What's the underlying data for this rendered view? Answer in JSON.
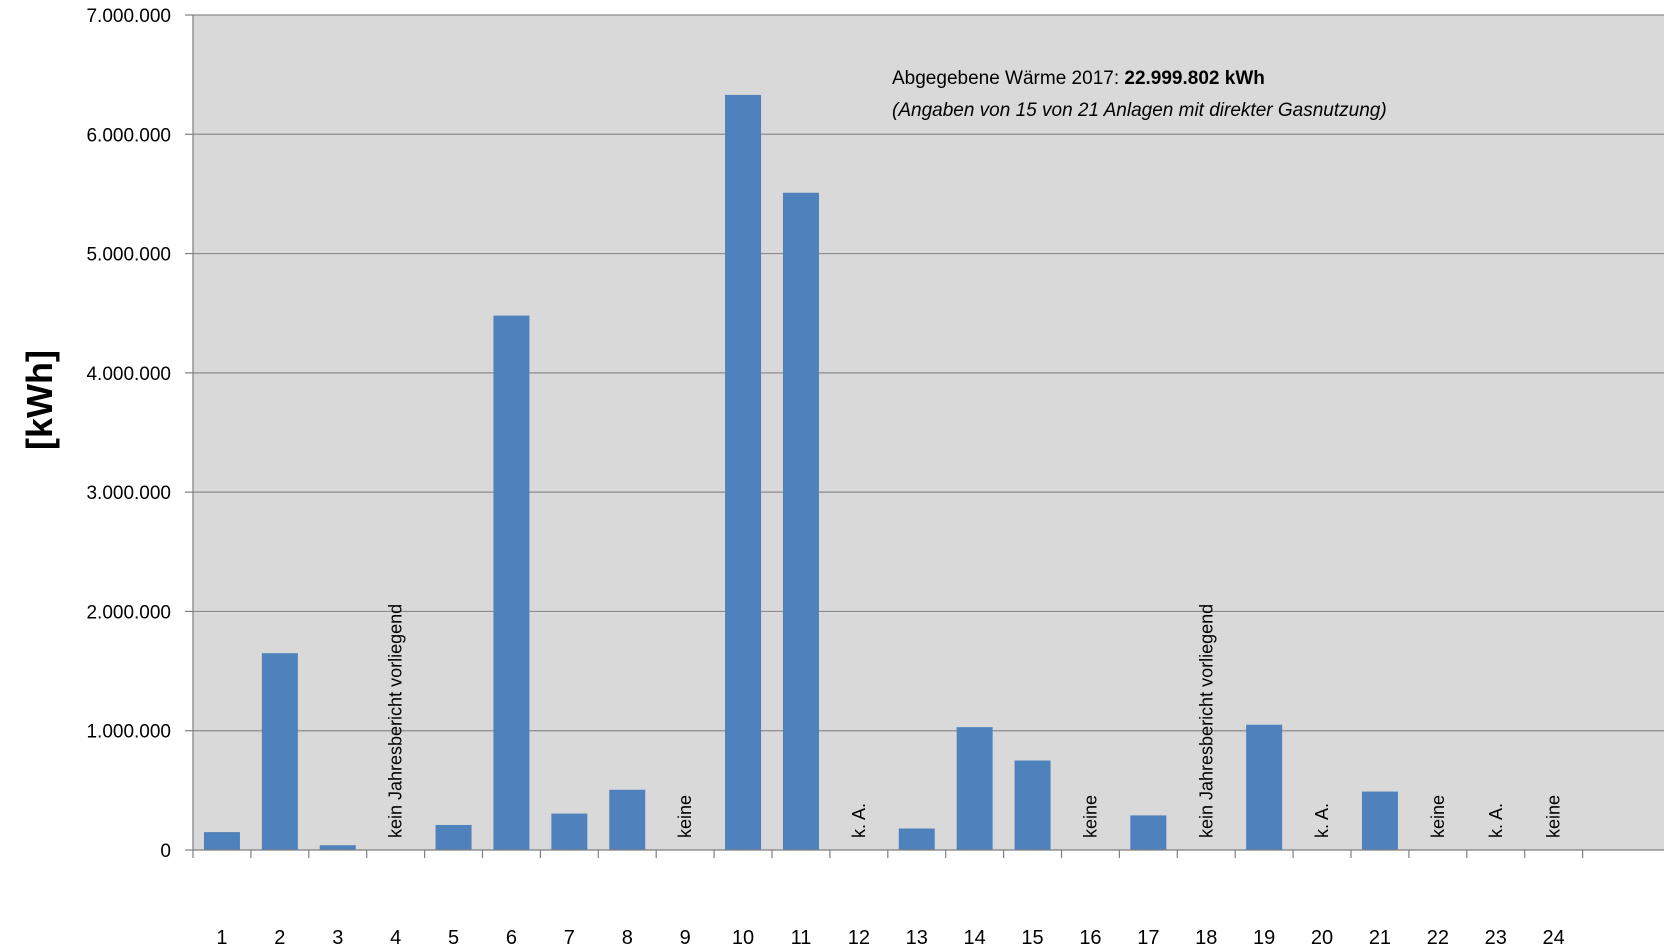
{
  "chart_data": {
    "type": "bar",
    "title": "",
    "xlabel": "",
    "ylabel": "[kWh]",
    "ylim": [
      0,
      7000000
    ],
    "grid": true,
    "legend": "none",
    "y_ticks": [
      "0",
      "1.000.000",
      "2.000.000",
      "3.000.000",
      "4.000.000",
      "5.000.000",
      "6.000.000",
      "7.000.000"
    ],
    "y_tick_values": [
      0,
      1000000,
      2000000,
      3000000,
      4000000,
      5000000,
      6000000,
      7000000
    ],
    "categories": [
      "1",
      "2",
      "3",
      "4",
      "5",
      "6",
      "7",
      "8",
      "9",
      "10",
      "11",
      "12",
      "13",
      "14",
      "15",
      "16",
      "17",
      "18",
      "19",
      "20",
      "21",
      "22",
      "23",
      "24"
    ],
    "values": [
      150000,
      1650000,
      40000,
      null,
      210000,
      4480000,
      305000,
      505000,
      null,
      6330000,
      5510000,
      null,
      180000,
      1030000,
      750000,
      null,
      290000,
      null,
      1050000,
      null,
      490000,
      null,
      null,
      null
    ],
    "bar_notes": [
      "",
      "",
      "",
      "kein Jahresbericht vorliegend",
      "",
      "",
      "",
      "",
      "keine",
      "",
      "",
      "k. A.",
      "",
      "",
      "",
      "keine",
      "",
      "kein Jahresbericht vorliegend",
      "",
      "k. A.",
      "",
      "keine",
      "k. A.",
      "keine"
    ],
    "annotation": {
      "line1_prefix": "Abgegebene  Wärme 2017: ",
      "line1_value": "22.999.802 kWh",
      "line2": "(Angaben von 15 von 21 Anlagen mit direkter  Gasnutzung)"
    },
    "colors": {
      "bar": "#4f81bd",
      "plot_background": "#d9d9d9",
      "gridline": "#8c8c8c"
    }
  }
}
